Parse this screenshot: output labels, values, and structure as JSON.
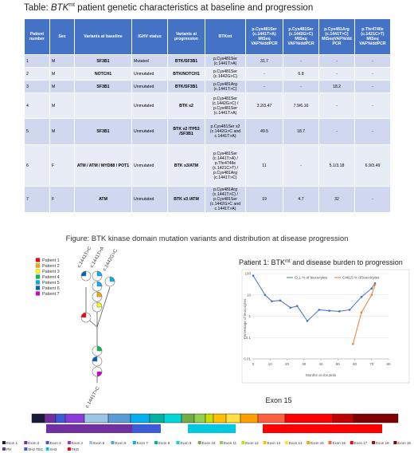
{
  "table_title": {
    "lead": "Table: ",
    "gene": "BTK",
    "sup": "mt",
    "rest": " patient genetic characteristics at baseline and progression"
  },
  "table": {
    "headers": [
      "Patient number",
      "Sex",
      "Variants at baseline",
      "IGHV status",
      "Variants at progression",
      "BTKmt",
      "p.Cys481Ser (c.1441T>A) MiSeq VAF%/ddPCR",
      "p.Cys481Ser (c.1442G>C) MiSeq VAF%/ddPCR",
      "p.Cys481Arg (c.1441T>C) MiSeqVAF%/dd PCR",
      "p.Thr474Ile (c.1421C>T) MiSeq VAF%/ddPCR"
    ],
    "rows": [
      [
        "1",
        "M",
        "SF3B1",
        "Mutated",
        "BTK/SF3B1",
        "p.Cys481Ser (c.1441T>A)",
        "31.7",
        "-",
        "-",
        "-"
      ],
      [
        "2",
        "M",
        "NOTCH1",
        "Unmutated",
        "BTK/NOTCH1",
        "p.Cys481Ser (c.1442G>C)",
        "-",
        "6.8",
        "-",
        "-"
      ],
      [
        "3",
        "M",
        "SF3B1",
        "Unmutated",
        "BTK/SF3B1",
        "p.Cys481Arg (c.1441T>C)",
        "-",
        "-",
        "18.2",
        "-"
      ],
      [
        "4",
        "M",
        null,
        "Unmutated",
        "BTK x2",
        "p.Cys481Ser (c.1442G>C) / p.Cys481Ser (c.1441T>A)",
        "3.2/3.47",
        "7.9/6.16",
        "-",
        "-"
      ],
      [
        "5",
        "M",
        "SF3B1",
        "Unmutated",
        "BTK x2 /TP53 /SF3B1",
        "p.Cys481Ser x2 (c.1442G>C and c.1441T>A)",
        "49.5",
        "18.7",
        "-",
        "-"
      ],
      [
        "6",
        "F",
        "ATM / ATM / MYD88 / POT1",
        "Unmutated",
        "BTK x3/ATM",
        "p.Cys481Ser (c.1441T>A) / p.Thr474Ile (c.1421C>T) / p.Cys481Arg (c.1441T>C)",
        "11",
        "-",
        "5.1/3.18",
        "6.9/3.49"
      ],
      [
        "7",
        "F",
        "ATM",
        "Unmutated",
        "BTK x3 /ATM",
        "p.Cys481Arg (c.1441T>C) / p.Cys481Ser (c.1442G>C and c.1441T>A)",
        "19",
        "4.7",
        "32",
        "-"
      ]
    ]
  },
  "figure_title": "Figure: BTK kinase domain mutation variants and distribution at disease progression",
  "lollipop": {
    "legend": [
      {
        "name": "Patient 1",
        "color": "#ff0000"
      },
      {
        "name": "Patient 2",
        "color": "#ffa500"
      },
      {
        "name": "Patient 3",
        "color": "#ffff00"
      },
      {
        "name": "Patient 4",
        "color": "#00c050"
      },
      {
        "name": "Patient 5",
        "color": "#00b0f0"
      },
      {
        "name": "Patient 6",
        "color": "#0060c0"
      },
      {
        "name": "Patient 7",
        "color": "#d000d0"
      }
    ],
    "top_labels": [
      "c.1441T>C",
      "c.1441T>A",
      "c.1442G>C"
    ],
    "bottom_label": "c.1441T>C"
  },
  "chart_data": {
    "type": "line",
    "title": "Patient 1: BTK",
    "title_sup": "mt",
    "title_rest": " and disease burden to progression",
    "x_label": "Months on ibrutinib",
    "y_label": "Percentage of leucocytes",
    "log_y": true,
    "xlim": [
      0,
      80
    ],
    "xticks": [
      0,
      10,
      20,
      30,
      40,
      50,
      60,
      70,
      80
    ],
    "ylim": [
      0.01,
      100
    ],
    "yticks": [
      0.01,
      0.1,
      1,
      10,
      100
    ],
    "series": [
      {
        "name": "CLL % of leucocytes",
        "color": "#4472c4",
        "x": [
          0,
          7,
          11,
          16,
          22,
          26,
          32,
          39,
          45,
          51,
          57,
          64,
          70,
          72
        ],
        "values": [
          80,
          10,
          5,
          5.5,
          2.5,
          3,
          0.6,
          2,
          1.8,
          1.7,
          2,
          8,
          20,
          35
        ]
      },
      {
        "name": "C481S % of leucocytes",
        "color": "#ed7d31",
        "x": [
          59,
          64,
          70,
          72
        ],
        "values": [
          0.05,
          1.5,
          10,
          30
        ]
      }
    ]
  },
  "exon_map": {
    "title": "Exon 15",
    "exons": [
      {
        "name": "Exon 1",
        "color": "#1a1a3a"
      },
      {
        "name": "Exon 2",
        "color": "#7030a0"
      },
      {
        "name": "Exon 3",
        "color": "#3d5bd9"
      },
      {
        "name": "Exon 4",
        "color": "#8a3ad8"
      },
      {
        "name": "Exon 5",
        "color": "#9dc3e6"
      },
      {
        "name": "Exon 6",
        "color": "#5b9bd5"
      },
      {
        "name": "Exon 7",
        "color": "#00b0f0"
      },
      {
        "name": "Exon 8",
        "color": "#00b0a0"
      },
      {
        "name": "Exon 9",
        "color": "#00d8d8"
      },
      {
        "name": "Exon 10",
        "color": "#70ad47"
      },
      {
        "name": "Exon 11",
        "color": "#92d050"
      },
      {
        "name": "Exon 12",
        "color": "#c8e000"
      },
      {
        "name": "Exon 13",
        "color": "#ffc000"
      },
      {
        "name": "Exon 14",
        "color": "#ffe040"
      },
      {
        "name": "Exon 15",
        "color": "#ffa000"
      },
      {
        "name": "Exon 16",
        "color": "#ff6040"
      },
      {
        "name": "Exon 17",
        "color": "#ff0000"
      },
      {
        "name": "Exon 18",
        "color": "#c00000"
      },
      {
        "name": "Exon 19",
        "color": "#7f0000"
      }
    ],
    "domains": [
      {
        "name": "PH",
        "color": "#7030a0"
      },
      {
        "name": "SH2 TEC",
        "color": "#3d5bd9"
      },
      {
        "name": "SH3",
        "color": "#00c8e0"
      },
      {
        "name": "TKD",
        "color": "#ff0000"
      }
    ]
  }
}
